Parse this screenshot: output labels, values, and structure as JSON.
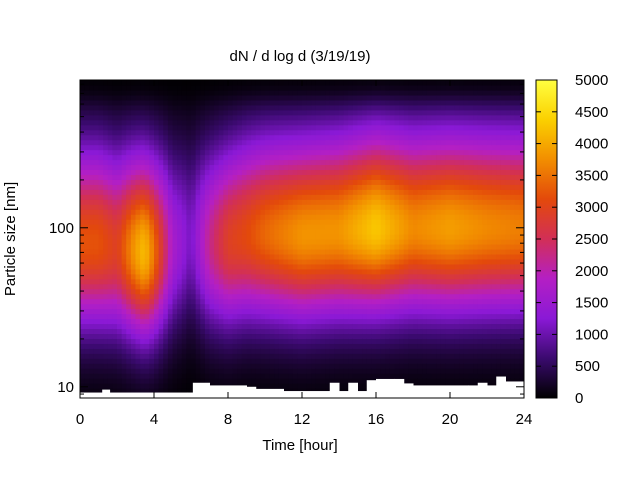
{
  "chart_data": {
    "type": "heatmap",
    "title": "dN / d log d (3/19/19)",
    "xlabel": "Time [hour]",
    "ylabel": "Particle size [nm]",
    "xlim": [
      0,
      24
    ],
    "ylim": [
      8.5,
      850
    ],
    "yscale": "log",
    "x_ticks": [
      0,
      4,
      8,
      12,
      16,
      20,
      24
    ],
    "x_tick_labels": [
      "0",
      "4",
      "8",
      "12",
      "16",
      "20",
      "24"
    ],
    "y_ticks": [
      10,
      100
    ],
    "y_tick_labels": [
      "10",
      "100"
    ],
    "colorbar": {
      "min": 0,
      "max": 5000,
      "ticks": [
        0,
        500,
        1000,
        1500,
        2000,
        2500,
        3000,
        3500,
        4000,
        4500,
        5000
      ],
      "tick_labels": [
        "0",
        "500",
        "1000",
        "1500",
        "2000",
        "2500",
        "3000",
        "3500",
        "4000",
        "4500",
        "5000"
      ],
      "palette": [
        "#000000",
        "#3a0a6e",
        "#8a19d6",
        "#b41fc4",
        "#d22f57",
        "#e3490b",
        "#f28e00",
        "#fbd000",
        "#ffff40"
      ]
    },
    "mode_profile": {
      "hours": [
        0,
        1,
        2,
        3,
        3.5,
        4,
        5,
        6,
        7,
        8,
        9,
        10,
        12,
        14,
        16,
        18,
        20,
        22,
        24
      ],
      "peak_size_nm": [
        80,
        80,
        75,
        72,
        70,
        70,
        75,
        85,
        80,
        82,
        90,
        92,
        90,
        95,
        100,
        100,
        100,
        100,
        100
      ],
      "peak_value": [
        3200,
        3200,
        2900,
        3900,
        4200,
        3500,
        1700,
        1100,
        2200,
        2900,
        3100,
        3400,
        3800,
        3800,
        4300,
        3700,
        3900,
        3700,
        3600
      ]
    },
    "min_detected_size_nm": {
      "hours": [
        0,
        1.2,
        1.6,
        5.8,
        6.1,
        7.0,
        9.0,
        9.5,
        11.0,
        13.5,
        14.0,
        14.5,
        15.0,
        15.5,
        16.0,
        17.0,
        17.5,
        18.0,
        21.0,
        21.5,
        22.0,
        22.5,
        23.0,
        24.0
      ],
      "size_nm": [
        9.2,
        9.6,
        9.2,
        9.2,
        10.6,
        10.2,
        10.0,
        9.7,
        9.4,
        10.6,
        9.4,
        10.6,
        9.4,
        11.0,
        11.2,
        11.2,
        10.5,
        10.2,
        10.2,
        10.6,
        10.2,
        11.6,
        10.8,
        10.6
      ]
    },
    "grid": false,
    "legend": "none"
  }
}
